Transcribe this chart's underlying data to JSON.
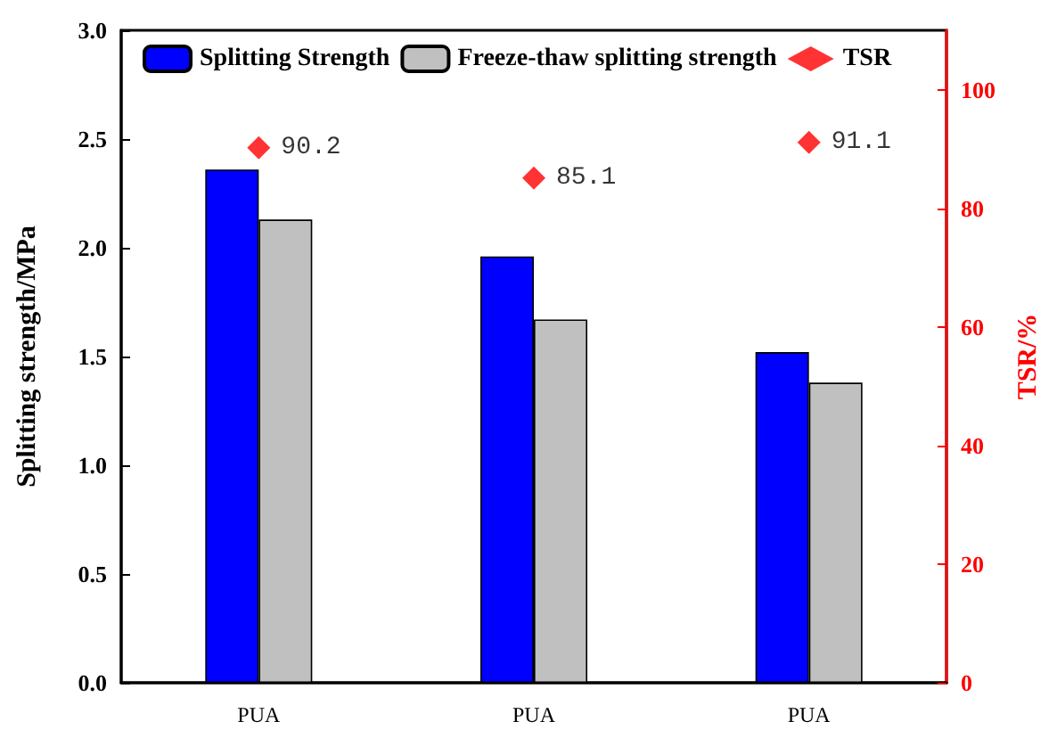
{
  "chart_data": {
    "type": "bar",
    "categories": [
      "PUA",
      "PUA",
      "PUA"
    ],
    "ylabel": "Splitting strength/MPa",
    "y2label": "TSR/%",
    "series": [
      {
        "name": "Splitting Strength",
        "color": "#0000ff",
        "values": [
          2.36,
          1.96,
          1.52
        ]
      },
      {
        "name": "Freeze-thaw splitting strength",
        "color": "#c0c0c0",
        "values": [
          2.13,
          1.67,
          1.38
        ]
      },
      {
        "name": "TSR",
        "type": "scatter",
        "axis": "y2",
        "color": "#ff0000",
        "values": [
          90.2,
          85.1,
          91.1
        ],
        "value_labels": [
          "90.2",
          "85.1",
          "91.1"
        ]
      }
    ],
    "ylim": [
      0,
      3
    ],
    "yticks": [
      {
        "value": 0,
        "label": "0.0"
      },
      0.5,
      {
        "value": 1,
        "label": "1.0"
      },
      1.5,
      {
        "value": 2,
        "label": "2.0"
      },
      2.5,
      {
        "value": 3,
        "label": "3.0"
      }
    ],
    "y2lim": [
      0,
      110
    ],
    "y2ticks": [
      0,
      20,
      40,
      60,
      80,
      100
    ],
    "grid": false,
    "legend": "top left",
    "marker": "diamond"
  }
}
